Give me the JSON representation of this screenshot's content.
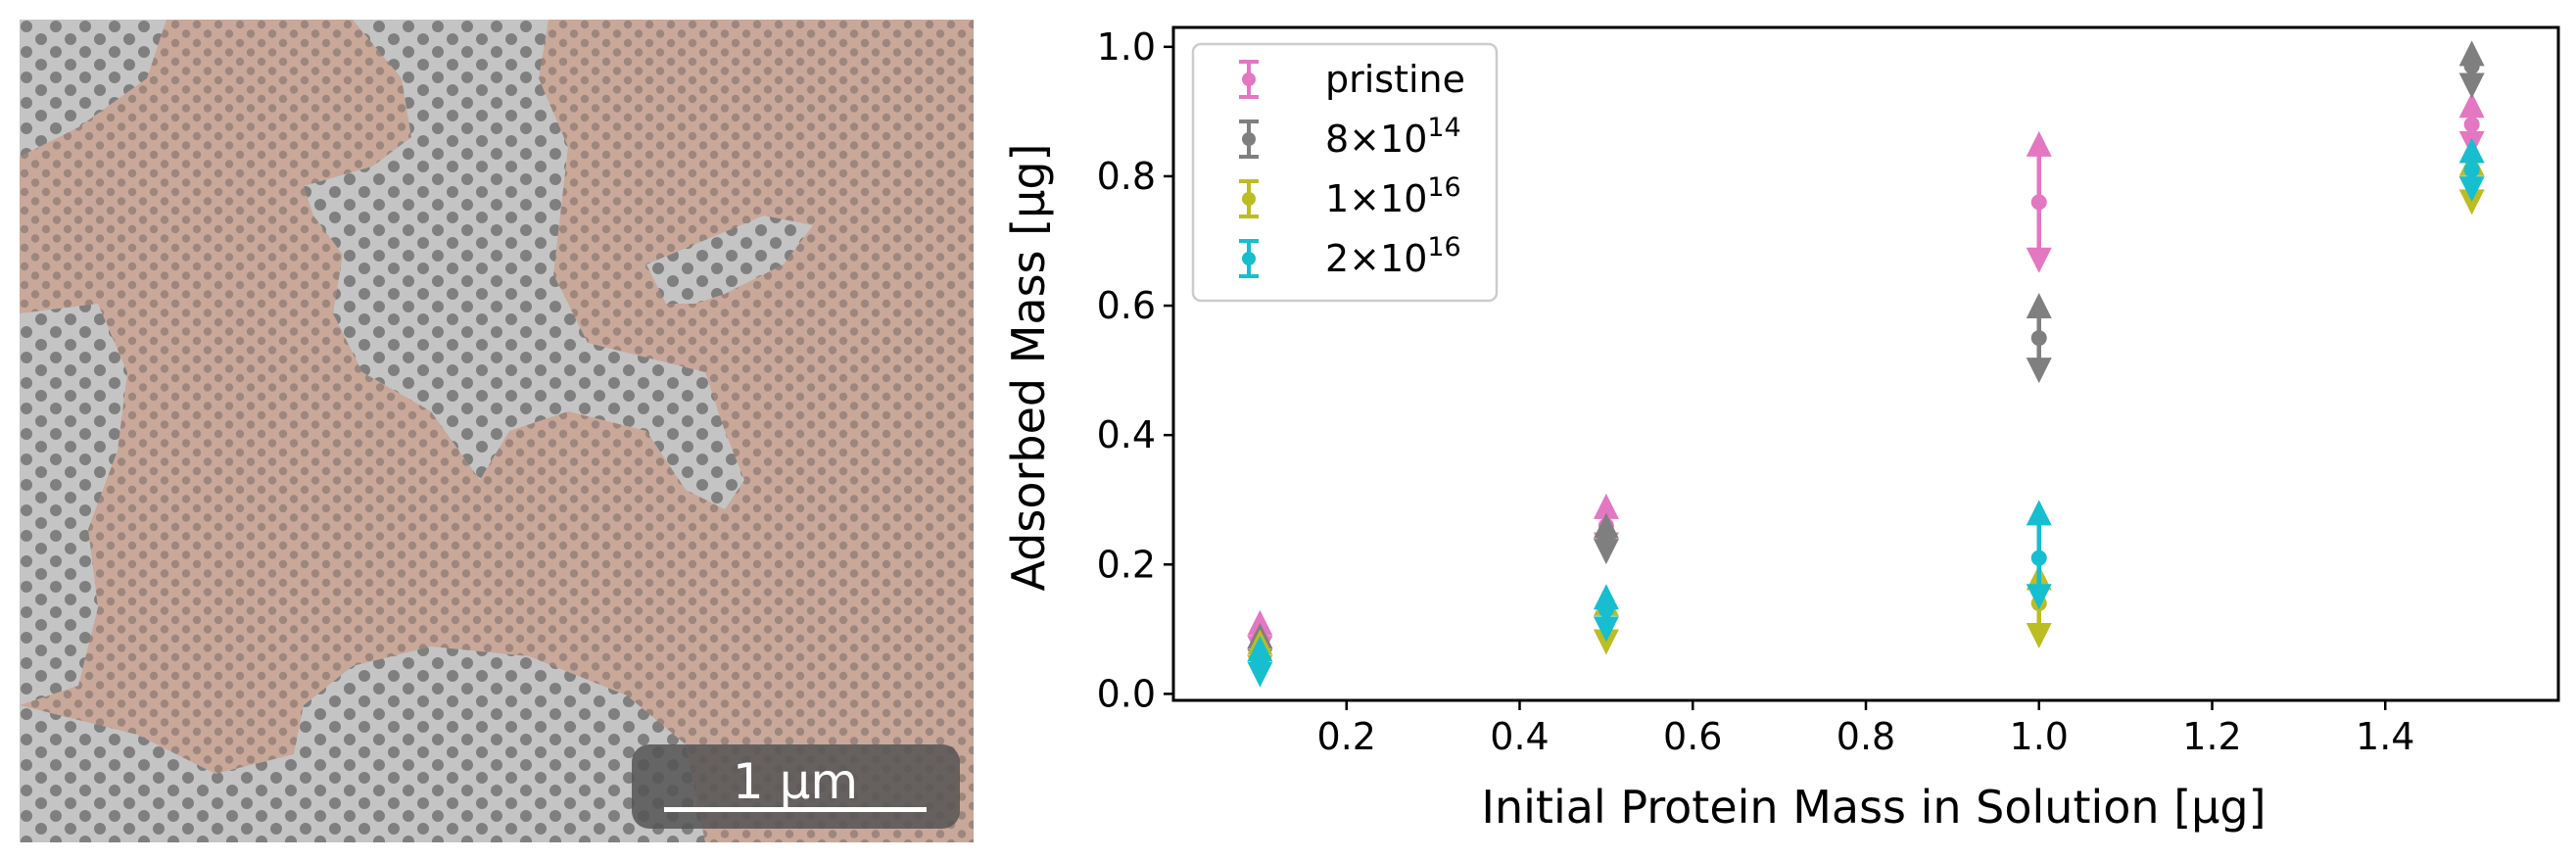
{
  "micrograph": {
    "scale_bar_label": "1 μm",
    "colors": {
      "domain_a": "#c9a89a",
      "domain_b": "#c2c2c2",
      "pore": "#6b6460"
    }
  },
  "chart_data": {
    "type": "scatter",
    "xlabel": "Initial Protein Mass in Solution  [μg]",
    "ylabel": "Adsorbed Mass [μg]",
    "xlim": [
      0.0,
      1.6
    ],
    "ylim": [
      -0.01,
      1.03
    ],
    "xticks": [
      {
        "value": 0.2,
        "label": "0.2"
      },
      {
        "value": 0.4,
        "label": "0.4"
      },
      {
        "value": 0.6,
        "label": "0.6"
      },
      {
        "value": 0.8,
        "label": "0.8"
      },
      {
        "value": 1.0,
        "label": "1.0"
      },
      {
        "value": 1.2,
        "label": "1.2"
      },
      {
        "value": 1.4,
        "label": "1.4"
      }
    ],
    "yticks": [
      {
        "value": 0.0,
        "label": "0.0"
      },
      {
        "value": 0.2,
        "label": "0.2"
      },
      {
        "value": 0.4,
        "label": "0.4"
      },
      {
        "value": 0.6,
        "label": "0.6"
      },
      {
        "value": 0.8,
        "label": "0.8"
      },
      {
        "value": 1.0,
        "label": "1.0"
      }
    ],
    "legend_position": "top-left",
    "series": [
      {
        "name": "pristine",
        "label_base": "pristine",
        "label_exp": "",
        "color": "#e377c2",
        "points": [
          {
            "x": 0.1,
            "y": 0.09,
            "ymin": 0.07,
            "ymax": 0.11
          },
          {
            "x": 0.5,
            "y": 0.26,
            "ymin": 0.23,
            "ymax": 0.29
          },
          {
            "x": 1.0,
            "y": 0.76,
            "ymin": 0.67,
            "ymax": 0.85
          },
          {
            "x": 1.5,
            "y": 0.88,
            "ymin": 0.85,
            "ymax": 0.91
          }
        ]
      },
      {
        "name": "8×10^14",
        "label_base": "8×10",
        "label_exp": "14",
        "color": "#7f7f7f",
        "points": [
          {
            "x": 0.1,
            "y": 0.07,
            "ymin": 0.05,
            "ymax": 0.09
          },
          {
            "x": 0.5,
            "y": 0.24,
            "ymin": 0.22,
            "ymax": 0.26
          },
          {
            "x": 1.0,
            "y": 0.55,
            "ymin": 0.5,
            "ymax": 0.6
          },
          {
            "x": 1.5,
            "y": 0.97,
            "ymin": 0.94,
            "ymax": 0.99
          }
        ]
      },
      {
        "name": "1×10^16",
        "label_base": "1×10",
        "label_exp": "16",
        "color": "#bcbd22",
        "points": [
          {
            "x": 0.1,
            "y": 0.06,
            "ymin": 0.04,
            "ymax": 0.08
          },
          {
            "x": 0.5,
            "y": 0.11,
            "ymin": 0.08,
            "ymax": 0.14
          },
          {
            "x": 1.0,
            "y": 0.14,
            "ymin": 0.09,
            "ymax": 0.18
          },
          {
            "x": 1.5,
            "y": 0.79,
            "ymin": 0.76,
            "ymax": 0.82
          }
        ]
      },
      {
        "name": "2×10^16",
        "label_base": "2×10",
        "label_exp": "16",
        "color": "#17becf",
        "points": [
          {
            "x": 0.1,
            "y": 0.05,
            "ymin": 0.03,
            "ymax": 0.07
          },
          {
            "x": 0.5,
            "y": 0.13,
            "ymin": 0.1,
            "ymax": 0.15
          },
          {
            "x": 1.0,
            "y": 0.21,
            "ymin": 0.15,
            "ymax": 0.28
          },
          {
            "x": 1.5,
            "y": 0.81,
            "ymin": 0.78,
            "ymax": 0.84
          }
        ]
      }
    ]
  }
}
